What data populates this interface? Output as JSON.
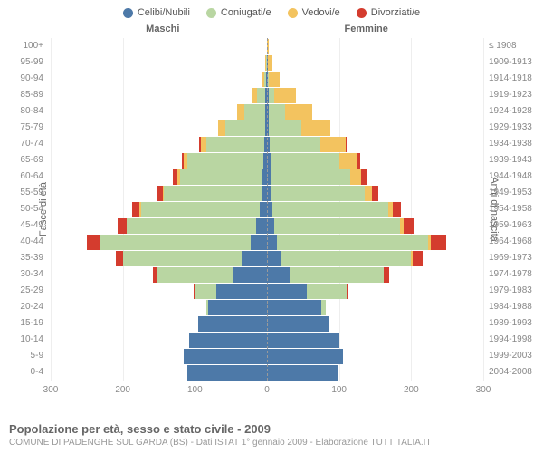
{
  "legend": [
    {
      "label": "Celibi/Nubili",
      "color": "#4d79a8"
    },
    {
      "label": "Coniugati/e",
      "color": "#b9d6a2"
    },
    {
      "label": "Vedovi/e",
      "color": "#f3c35f"
    },
    {
      "label": "Divorziati/e",
      "color": "#d43c2e"
    }
  ],
  "gender_left": "Maschi",
  "gender_right": "Femmine",
  "y_title_left": "Fasce di età",
  "y_title_right": "Anni di nascita",
  "x_ticks": [
    300,
    200,
    100,
    0,
    100,
    200,
    300
  ],
  "x_max": 300,
  "age_labels": [
    "0-4",
    "5-9",
    "10-14",
    "15-19",
    "20-24",
    "25-29",
    "30-34",
    "35-39",
    "40-44",
    "45-49",
    "50-54",
    "55-59",
    "60-64",
    "65-69",
    "70-74",
    "75-79",
    "80-84",
    "85-89",
    "90-94",
    "95-99",
    "100+"
  ],
  "year_labels": [
    "2004-2008",
    "1999-2003",
    "1994-1998",
    "1989-1993",
    "1984-1988",
    "1979-1983",
    "1974-1978",
    "1969-1973",
    "1964-1968",
    "1959-1963",
    "1954-1958",
    "1949-1953",
    "1944-1948",
    "1939-1943",
    "1934-1938",
    "1929-1933",
    "1924-1928",
    "1919-1923",
    "1914-1918",
    "1909-1913",
    "≤ 1908"
  ],
  "data": {
    "male": [
      {
        "c": 110,
        "m": 0,
        "w": 0,
        "d": 0
      },
      {
        "c": 115,
        "m": 0,
        "w": 0,
        "d": 0
      },
      {
        "c": 108,
        "m": 0,
        "w": 0,
        "d": 0
      },
      {
        "c": 95,
        "m": 0,
        "w": 0,
        "d": 0
      },
      {
        "c": 82,
        "m": 2,
        "w": 0,
        "d": 0
      },
      {
        "c": 70,
        "m": 30,
        "w": 0,
        "d": 2
      },
      {
        "c": 48,
        "m": 105,
        "w": 0,
        "d": 5
      },
      {
        "c": 35,
        "m": 165,
        "w": 0,
        "d": 10
      },
      {
        "c": 22,
        "m": 210,
        "w": 0,
        "d": 18
      },
      {
        "c": 15,
        "m": 180,
        "w": 0,
        "d": 12
      },
      {
        "c": 10,
        "m": 165,
        "w": 2,
        "d": 10
      },
      {
        "c": 8,
        "m": 135,
        "w": 2,
        "d": 8
      },
      {
        "c": 6,
        "m": 115,
        "w": 3,
        "d": 6
      },
      {
        "c": 5,
        "m": 105,
        "w": 5,
        "d": 3
      },
      {
        "c": 4,
        "m": 80,
        "w": 8,
        "d": 2
      },
      {
        "c": 3,
        "m": 55,
        "w": 10,
        "d": 0
      },
      {
        "c": 2,
        "m": 30,
        "w": 10,
        "d": 0
      },
      {
        "c": 2,
        "m": 12,
        "w": 8,
        "d": 0
      },
      {
        "c": 1,
        "m": 3,
        "w": 4,
        "d": 0
      },
      {
        "c": 0,
        "m": 1,
        "w": 2,
        "d": 0
      },
      {
        "c": 0,
        "m": 0,
        "w": 0,
        "d": 0
      }
    ],
    "female": [
      {
        "c": 98,
        "m": 0,
        "w": 0,
        "d": 0
      },
      {
        "c": 105,
        "m": 0,
        "w": 0,
        "d": 0
      },
      {
        "c": 100,
        "m": 0,
        "w": 0,
        "d": 0
      },
      {
        "c": 85,
        "m": 0,
        "w": 0,
        "d": 0
      },
      {
        "c": 75,
        "m": 6,
        "w": 0,
        "d": 0
      },
      {
        "c": 55,
        "m": 55,
        "w": 0,
        "d": 3
      },
      {
        "c": 32,
        "m": 130,
        "w": 0,
        "d": 8
      },
      {
        "c": 20,
        "m": 180,
        "w": 2,
        "d": 14
      },
      {
        "c": 14,
        "m": 210,
        "w": 3,
        "d": 22
      },
      {
        "c": 10,
        "m": 175,
        "w": 4,
        "d": 15
      },
      {
        "c": 8,
        "m": 160,
        "w": 6,
        "d": 12
      },
      {
        "c": 6,
        "m": 130,
        "w": 10,
        "d": 8
      },
      {
        "c": 5,
        "m": 110,
        "w": 16,
        "d": 8
      },
      {
        "c": 5,
        "m": 95,
        "w": 25,
        "d": 4
      },
      {
        "c": 4,
        "m": 70,
        "w": 35,
        "d": 2
      },
      {
        "c": 3,
        "m": 45,
        "w": 40,
        "d": 0
      },
      {
        "c": 3,
        "m": 22,
        "w": 38,
        "d": 0
      },
      {
        "c": 2,
        "m": 8,
        "w": 30,
        "d": 0
      },
      {
        "c": 1,
        "m": 2,
        "w": 15,
        "d": 0
      },
      {
        "c": 1,
        "m": 0,
        "w": 6,
        "d": 0
      },
      {
        "c": 0,
        "m": 0,
        "w": 2,
        "d": 0
      }
    ]
  },
  "colors": {
    "c": "#4d79a8",
    "m": "#b9d6a2",
    "w": "#f3c35f",
    "d": "#d43c2e"
  },
  "bar_gap": 1,
  "title": "Popolazione per età, sesso e stato civile - 2009",
  "subtitle": "COMUNE DI PADENGHE SUL GARDA (BS) - Dati ISTAT 1° gennaio 2009 - Elaborazione TUTTITALIA.IT"
}
